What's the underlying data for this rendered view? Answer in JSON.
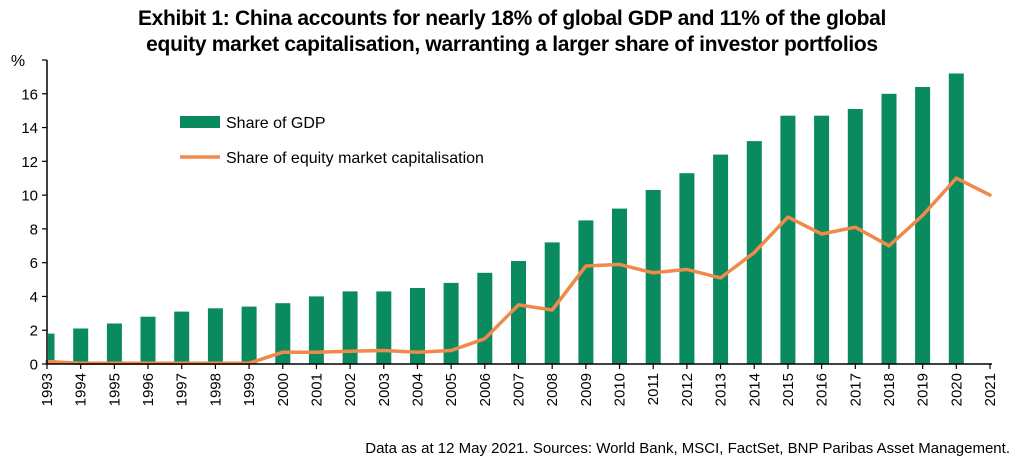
{
  "chart_data": {
    "type": "bar",
    "title_line1": "Exhibit 1: China accounts for nearly 18% of global GDP and 11% of the global",
    "title_line2": "equity market capitalisation, warranting a larger share of investor portfolios",
    "ylabel": "%",
    "ylim": [
      0,
      18
    ],
    "yticks": [
      "0",
      "2",
      "4",
      "6",
      "8",
      "10",
      "12",
      "14",
      "16"
    ],
    "categories": [
      "1993",
      "1994",
      "1995",
      "1996",
      "1997",
      "1998",
      "1999",
      "2000",
      "2001",
      "2002",
      "2003",
      "2004",
      "2005",
      "2006",
      "2007",
      "2008",
      "2009",
      "2010",
      "2011",
      "2012",
      "2013",
      "2014",
      "2015",
      "2016",
      "2017",
      "2018",
      "2019",
      "2020",
      "2021"
    ],
    "series": [
      {
        "name": "Share of GDP",
        "kind": "bar",
        "color": "#0a8a5f",
        "values": [
          1.8,
          2.1,
          2.4,
          2.8,
          3.1,
          3.3,
          3.4,
          3.6,
          4.0,
          4.3,
          4.3,
          4.5,
          4.8,
          5.4,
          6.1,
          7.2,
          8.5,
          9.2,
          10.3,
          11.3,
          12.4,
          13.2,
          14.7,
          14.7,
          15.1,
          16.0,
          16.4,
          17.2,
          null
        ]
      },
      {
        "name": "Share of equity market capitalisation",
        "kind": "line",
        "color": "#f08a4b",
        "values": [
          0.15,
          0.05,
          0.05,
          0.05,
          0.05,
          0.05,
          0.05,
          0.7,
          0.7,
          0.75,
          0.8,
          0.7,
          0.8,
          1.5,
          3.5,
          3.2,
          5.8,
          5.9,
          5.4,
          5.6,
          5.1,
          6.6,
          8.7,
          7.7,
          8.1,
          7.0,
          8.8,
          11.0,
          10.0
        ]
      }
    ],
    "legend_position": "top-left",
    "grid": false,
    "source_note": "Data as at 12 May 2021. Sources: World Bank, MSCI, FactSet, BNP Paribas Asset Management."
  }
}
